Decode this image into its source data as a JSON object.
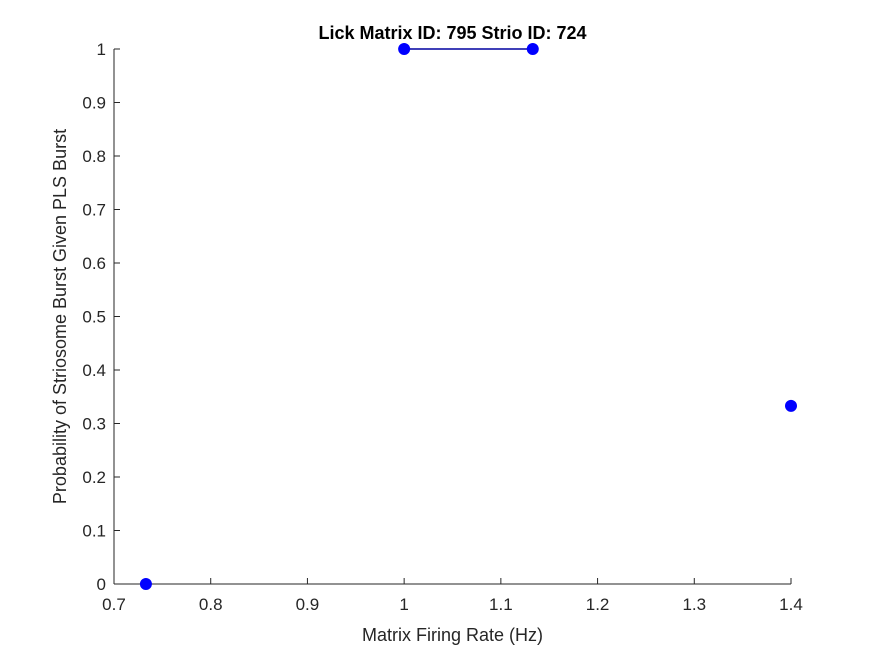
{
  "chart_data": {
    "type": "line",
    "title": "Lick Matrix ID: 795 Strio ID: 724",
    "xlabel": "Matrix Firing Rate (Hz)",
    "ylabel": "Probability of Striosome Burst Given PLS Burst",
    "xlim": [
      0.7,
      1.4
    ],
    "ylim": [
      0,
      1
    ],
    "xticks": [
      "0.7",
      "0.8",
      "0.9",
      "1",
      "1.1",
      "1.2",
      "1.3",
      "1.4"
    ],
    "yticks": [
      "0",
      "0.1",
      "0.2",
      "0.3",
      "0.4",
      "0.5",
      "0.6",
      "0.7",
      "0.8",
      "0.9",
      "1"
    ],
    "grid": false,
    "series": [
      {
        "x": [
          0.733,
          1.0,
          1.133,
          1.4
        ],
        "y": [
          0,
          1,
          1,
          0.333
        ],
        "segments": [
          [
            1,
            2
          ]
        ],
        "color": "#0000ff",
        "line_color": "#0000a0"
      }
    ]
  }
}
